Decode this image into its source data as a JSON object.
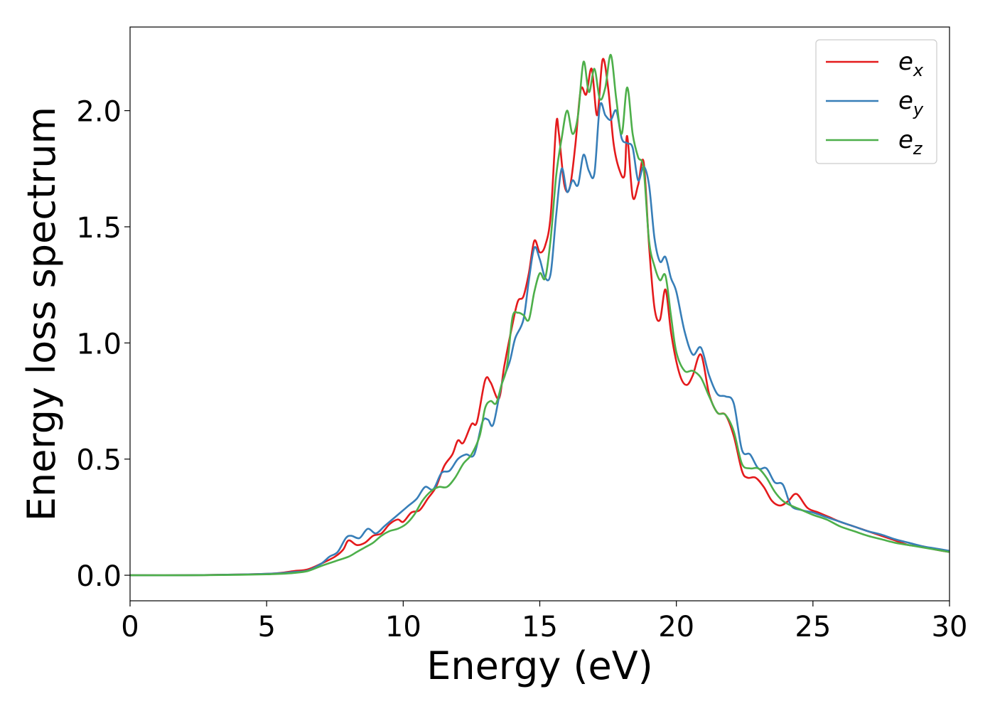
{
  "chart_data": {
    "type": "line",
    "xlabel": "Energy (eV)",
    "ylabel": "Energy loss spectrum",
    "xlim": [
      0,
      30
    ],
    "ylim": [
      -0.11,
      2.36
    ],
    "xticks": [
      0,
      5,
      10,
      15,
      20,
      25,
      30
    ],
    "xtick_labels": [
      "0",
      "5",
      "10",
      "15",
      "20",
      "25",
      "30"
    ],
    "yticks": [
      0.0,
      0.5,
      1.0,
      1.5,
      2.0
    ],
    "ytick_labels": [
      "0.0",
      "0.5",
      "1.0",
      "1.5",
      "2.0"
    ],
    "grid": false,
    "legend_position": "top-right",
    "series": [
      {
        "legend_base": "e",
        "legend_sub": "x",
        "color": "#e41a1c",
        "x": [
          0,
          2,
          4,
          5,
          5.5,
          6,
          6.5,
          7,
          7.5,
          7.8,
          8.0,
          8.3,
          8.6,
          8.9,
          9.2,
          9.5,
          9.8,
          10.0,
          10.3,
          10.6,
          10.9,
          11.2,
          11.5,
          11.8,
          12.0,
          12.2,
          12.5,
          12.7,
          13.0,
          13.2,
          13.5,
          13.7,
          14.0,
          14.2,
          14.4,
          14.6,
          14.8,
          15.0,
          15.2,
          15.4,
          15.6,
          15.7,
          15.9,
          16.1,
          16.3,
          16.5,
          16.7,
          16.9,
          17.1,
          17.3,
          17.5,
          17.7,
          17.9,
          18.1,
          18.2,
          18.4,
          18.6,
          18.8,
          19.0,
          19.2,
          19.4,
          19.6,
          19.8,
          20.0,
          20.2,
          20.4,
          20.6,
          20.9,
          21.2,
          21.5,
          21.8,
          22.1,
          22.4,
          22.6,
          22.9,
          23.2,
          23.5,
          23.8,
          24.1,
          24.4,
          24.8,
          25.2,
          25.6,
          26.0,
          26.5,
          27.0,
          27.5,
          28.0,
          28.5,
          29.0,
          29.5,
          30.0
        ],
        "y": [
          0.0,
          0.0,
          0.003,
          0.006,
          0.01,
          0.018,
          0.025,
          0.05,
          0.08,
          0.11,
          0.15,
          0.13,
          0.14,
          0.17,
          0.18,
          0.22,
          0.24,
          0.23,
          0.27,
          0.28,
          0.33,
          0.38,
          0.47,
          0.52,
          0.58,
          0.57,
          0.65,
          0.66,
          0.84,
          0.83,
          0.76,
          0.9,
          1.08,
          1.18,
          1.2,
          1.3,
          1.44,
          1.39,
          1.42,
          1.55,
          1.94,
          1.9,
          1.68,
          1.67,
          1.85,
          2.09,
          2.07,
          2.18,
          1.98,
          2.22,
          2.1,
          1.86,
          1.75,
          1.72,
          1.89,
          1.63,
          1.68,
          1.78,
          1.42,
          1.15,
          1.1,
          1.23,
          1.05,
          0.92,
          0.84,
          0.82,
          0.86,
          0.95,
          0.78,
          0.7,
          0.69,
          0.6,
          0.45,
          0.42,
          0.42,
          0.38,
          0.32,
          0.3,
          0.32,
          0.35,
          0.29,
          0.27,
          0.25,
          0.23,
          0.21,
          0.19,
          0.17,
          0.15,
          0.13,
          0.125,
          0.11,
          0.1
        ]
      },
      {
        "legend_base": "e",
        "legend_sub": "y",
        "color": "#377eb8",
        "x": [
          0,
          2,
          4,
          5,
          5.5,
          6,
          6.5,
          7,
          7.3,
          7.6,
          7.9,
          8.1,
          8.4,
          8.7,
          9.0,
          9.3,
          9.6,
          9.9,
          10.2,
          10.5,
          10.8,
          11.1,
          11.4,
          11.7,
          12.0,
          12.3,
          12.6,
          12.9,
          13.1,
          13.3,
          13.6,
          13.9,
          14.1,
          14.4,
          14.6,
          14.8,
          15.0,
          15.2,
          15.4,
          15.6,
          15.8,
          16.0,
          16.2,
          16.4,
          16.6,
          16.8,
          17.0,
          17.2,
          17.4,
          17.6,
          17.8,
          18.0,
          18.2,
          18.4,
          18.6,
          18.8,
          19.0,
          19.2,
          19.4,
          19.6,
          19.8,
          20.0,
          20.3,
          20.6,
          20.9,
          21.2,
          21.5,
          21.8,
          22.1,
          22.4,
          22.7,
          23.0,
          23.3,
          23.6,
          23.9,
          24.2,
          24.6,
          25.0,
          25.5,
          26.0,
          26.5,
          27.0,
          27.5,
          28.0,
          28.5,
          29.0,
          29.5,
          30.0
        ],
        "y": [
          0.0,
          0.0,
          0.003,
          0.006,
          0.009,
          0.014,
          0.02,
          0.05,
          0.08,
          0.1,
          0.16,
          0.17,
          0.16,
          0.2,
          0.18,
          0.21,
          0.24,
          0.27,
          0.3,
          0.33,
          0.38,
          0.37,
          0.44,
          0.45,
          0.5,
          0.52,
          0.52,
          0.66,
          0.67,
          0.65,
          0.82,
          0.92,
          1.02,
          1.1,
          1.27,
          1.41,
          1.36,
          1.28,
          1.3,
          1.55,
          1.75,
          1.65,
          1.7,
          1.68,
          1.81,
          1.74,
          1.73,
          2.02,
          1.98,
          1.96,
          2.0,
          1.88,
          1.86,
          1.84,
          1.7,
          1.76,
          1.68,
          1.45,
          1.35,
          1.37,
          1.28,
          1.22,
          1.05,
          0.95,
          0.98,
          0.86,
          0.78,
          0.77,
          0.74,
          0.54,
          0.52,
          0.46,
          0.46,
          0.4,
          0.39,
          0.3,
          0.28,
          0.27,
          0.25,
          0.23,
          0.21,
          0.19,
          0.175,
          0.155,
          0.14,
          0.125,
          0.115,
          0.105
        ]
      },
      {
        "legend_base": "e",
        "legend_sub": "z",
        "color": "#4daf4a",
        "x": [
          0,
          2,
          4,
          5,
          5.5,
          6,
          6.5,
          7,
          7.5,
          8.0,
          8.3,
          8.6,
          8.9,
          9.2,
          9.5,
          9.8,
          10.1,
          10.4,
          10.7,
          11.0,
          11.3,
          11.6,
          11.9,
          12.2,
          12.5,
          12.8,
          13.0,
          13.2,
          13.4,
          13.6,
          13.8,
          14.0,
          14.2,
          14.4,
          14.6,
          14.8,
          15.0,
          15.2,
          15.4,
          15.6,
          15.8,
          16.0,
          16.2,
          16.4,
          16.6,
          16.8,
          17.0,
          17.2,
          17.4,
          17.6,
          17.8,
          18.0,
          18.2,
          18.4,
          18.6,
          18.8,
          19.0,
          19.2,
          19.4,
          19.6,
          19.8,
          20.0,
          20.3,
          20.6,
          20.9,
          21.2,
          21.5,
          21.8,
          22.1,
          22.4,
          22.7,
          23.0,
          23.3,
          23.6,
          23.9,
          24.2,
          24.6,
          25.0,
          25.5,
          26.0,
          26.5,
          27.0,
          27.5,
          28.0,
          28.5,
          29.0,
          29.5,
          30.0
        ],
        "y": [
          0.0,
          0.0,
          0.002,
          0.004,
          0.006,
          0.01,
          0.018,
          0.04,
          0.06,
          0.08,
          0.1,
          0.12,
          0.14,
          0.17,
          0.19,
          0.2,
          0.22,
          0.26,
          0.32,
          0.36,
          0.38,
          0.38,
          0.42,
          0.48,
          0.52,
          0.6,
          0.72,
          0.75,
          0.74,
          0.82,
          0.9,
          1.11,
          1.13,
          1.12,
          1.1,
          1.22,
          1.3,
          1.28,
          1.45,
          1.72,
          1.88,
          2.0,
          1.9,
          1.98,
          2.21,
          2.08,
          2.18,
          2.05,
          2.1,
          2.24,
          2.05,
          1.9,
          2.1,
          1.9,
          1.8,
          1.75,
          1.44,
          1.33,
          1.27,
          1.29,
          1.12,
          0.96,
          0.88,
          0.88,
          0.85,
          0.77,
          0.7,
          0.69,
          0.62,
          0.48,
          0.46,
          0.46,
          0.42,
          0.36,
          0.32,
          0.3,
          0.28,
          0.26,
          0.24,
          0.21,
          0.19,
          0.17,
          0.155,
          0.14,
          0.13,
          0.12,
          0.11,
          0.1
        ]
      }
    ]
  }
}
